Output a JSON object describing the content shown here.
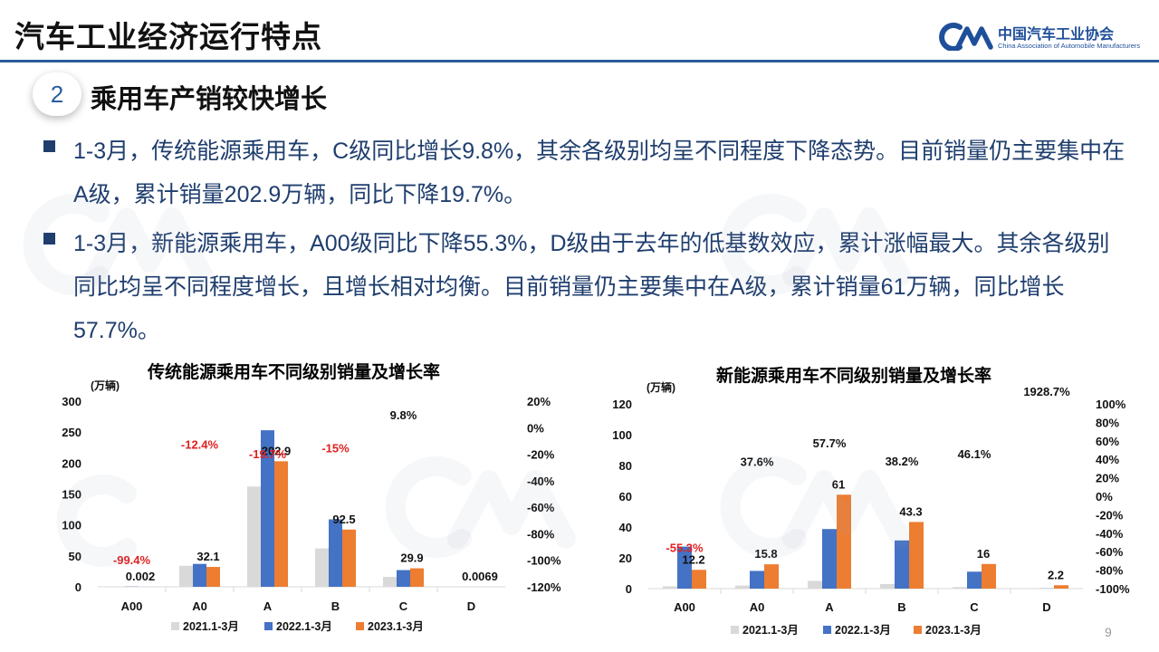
{
  "header": {
    "title": "汽车工业经济运行特点"
  },
  "logo": {
    "cn": "中国汽车工业协会",
    "en": "China Association of Automobile Manufacturers"
  },
  "section": {
    "number": "2",
    "title": "乘用车产销较快增长"
  },
  "bullets": [
    "1-3月，传统能源乘用车，C级同比增长9.8%，其余各级别均呈不同程度下降态势。目前销量仍主要集中在A级，累计销量202.9万辆，同比下降19.7%。",
    "1-3月，新能源乘用车，A00级同比下降55.3%，D级由于去年的低基数效应，累计涨幅最大。其余各级别同比均呈不同程度增长，且增长相对均衡。目前销量仍主要集中在A级，累计销量61万辆，同比增长57.7%。"
  ],
  "page_number": "9",
  "colors": {
    "series2021": "#d9d9d9",
    "series2022": "#4472c4",
    "series2023": "#ed7d31",
    "negative": "#e02020",
    "text_blue": "#1f3e6e"
  },
  "chart_data": [
    {
      "type": "bar",
      "title": "传统能源乘用车不同级别销量及增长率",
      "ylabel": "(万辆)",
      "categories": [
        "A00",
        "A0",
        "A",
        "B",
        "C",
        "D"
      ],
      "ylim": [
        0,
        300
      ],
      "yticks": [
        "0",
        "50",
        "100",
        "150",
        "200",
        "250",
        "300"
      ],
      "y2ticks": [
        "-120%",
        "-100%",
        "-80%",
        "-60%",
        "-40%",
        "-20%",
        "0%",
        "20%"
      ],
      "y2lim": [
        -120,
        20
      ],
      "series": [
        {
          "name": "2021.1-3月",
          "color": "#d9d9d9",
          "values": [
            0.3,
            34,
            162,
            62,
            16,
            0
          ]
        },
        {
          "name": "2022.1-3月",
          "color": "#4472c4",
          "values": [
            0.33,
            37,
            253,
            109,
            27,
            0
          ]
        },
        {
          "name": "2023.1-3月",
          "color": "#ed7d31",
          "values": [
            0.002,
            32.1,
            202.9,
            92.5,
            29.9,
            0.0069
          ]
        }
      ],
      "value_labels": [
        "0.002",
        "32.1",
        "202.9",
        "92.5",
        "29.9",
        "0.0069"
      ],
      "growth": [
        -99.4,
        -12.4,
        -19.7,
        -15,
        9.8,
        null
      ],
      "growth_labels": [
        "-99.4%",
        "-12.4%",
        "-19.7%",
        "-15%",
        "9.8%",
        ""
      ]
    },
    {
      "type": "bar",
      "title": "新能源乘用车不同级别销量及增长率",
      "ylabel": "(万辆)",
      "categories": [
        "A00",
        "A0",
        "A",
        "B",
        "C",
        "D"
      ],
      "ylim": [
        0,
        120
      ],
      "yticks": [
        "0",
        "20",
        "40",
        "60",
        "80",
        "100",
        "120"
      ],
      "y2ticks": [
        "-100%",
        "-80%",
        "-60%",
        "-40%",
        "-20%",
        "0%",
        "20%",
        "40%",
        "60%",
        "80%",
        "100%"
      ],
      "y2lim": [
        -100,
        100
      ],
      "series": [
        {
          "name": "2021.1-3月",
          "color": "#d9d9d9",
          "values": [
            1.5,
            2,
            5,
            3,
            1,
            0
          ]
        },
        {
          "name": "2022.1-3月",
          "color": "#4472c4",
          "values": [
            27.3,
            11.5,
            38.7,
            31.3,
            11,
            0.1
          ]
        },
        {
          "name": "2023.1-3月",
          "color": "#ed7d31",
          "values": [
            12.2,
            15.8,
            61,
            43.3,
            16,
            2.2
          ]
        }
      ],
      "value_labels": [
        "12.2",
        "15.8",
        "61",
        "43.3",
        "16",
        "2.2"
      ],
      "growth": [
        -55.3,
        37.6,
        57.7,
        38.2,
        46.1,
        1928.7
      ],
      "growth_labels": [
        "-55.3%",
        "37.6%",
        "57.7%",
        "38.2%",
        "46.1%",
        "1928.7%"
      ]
    }
  ]
}
